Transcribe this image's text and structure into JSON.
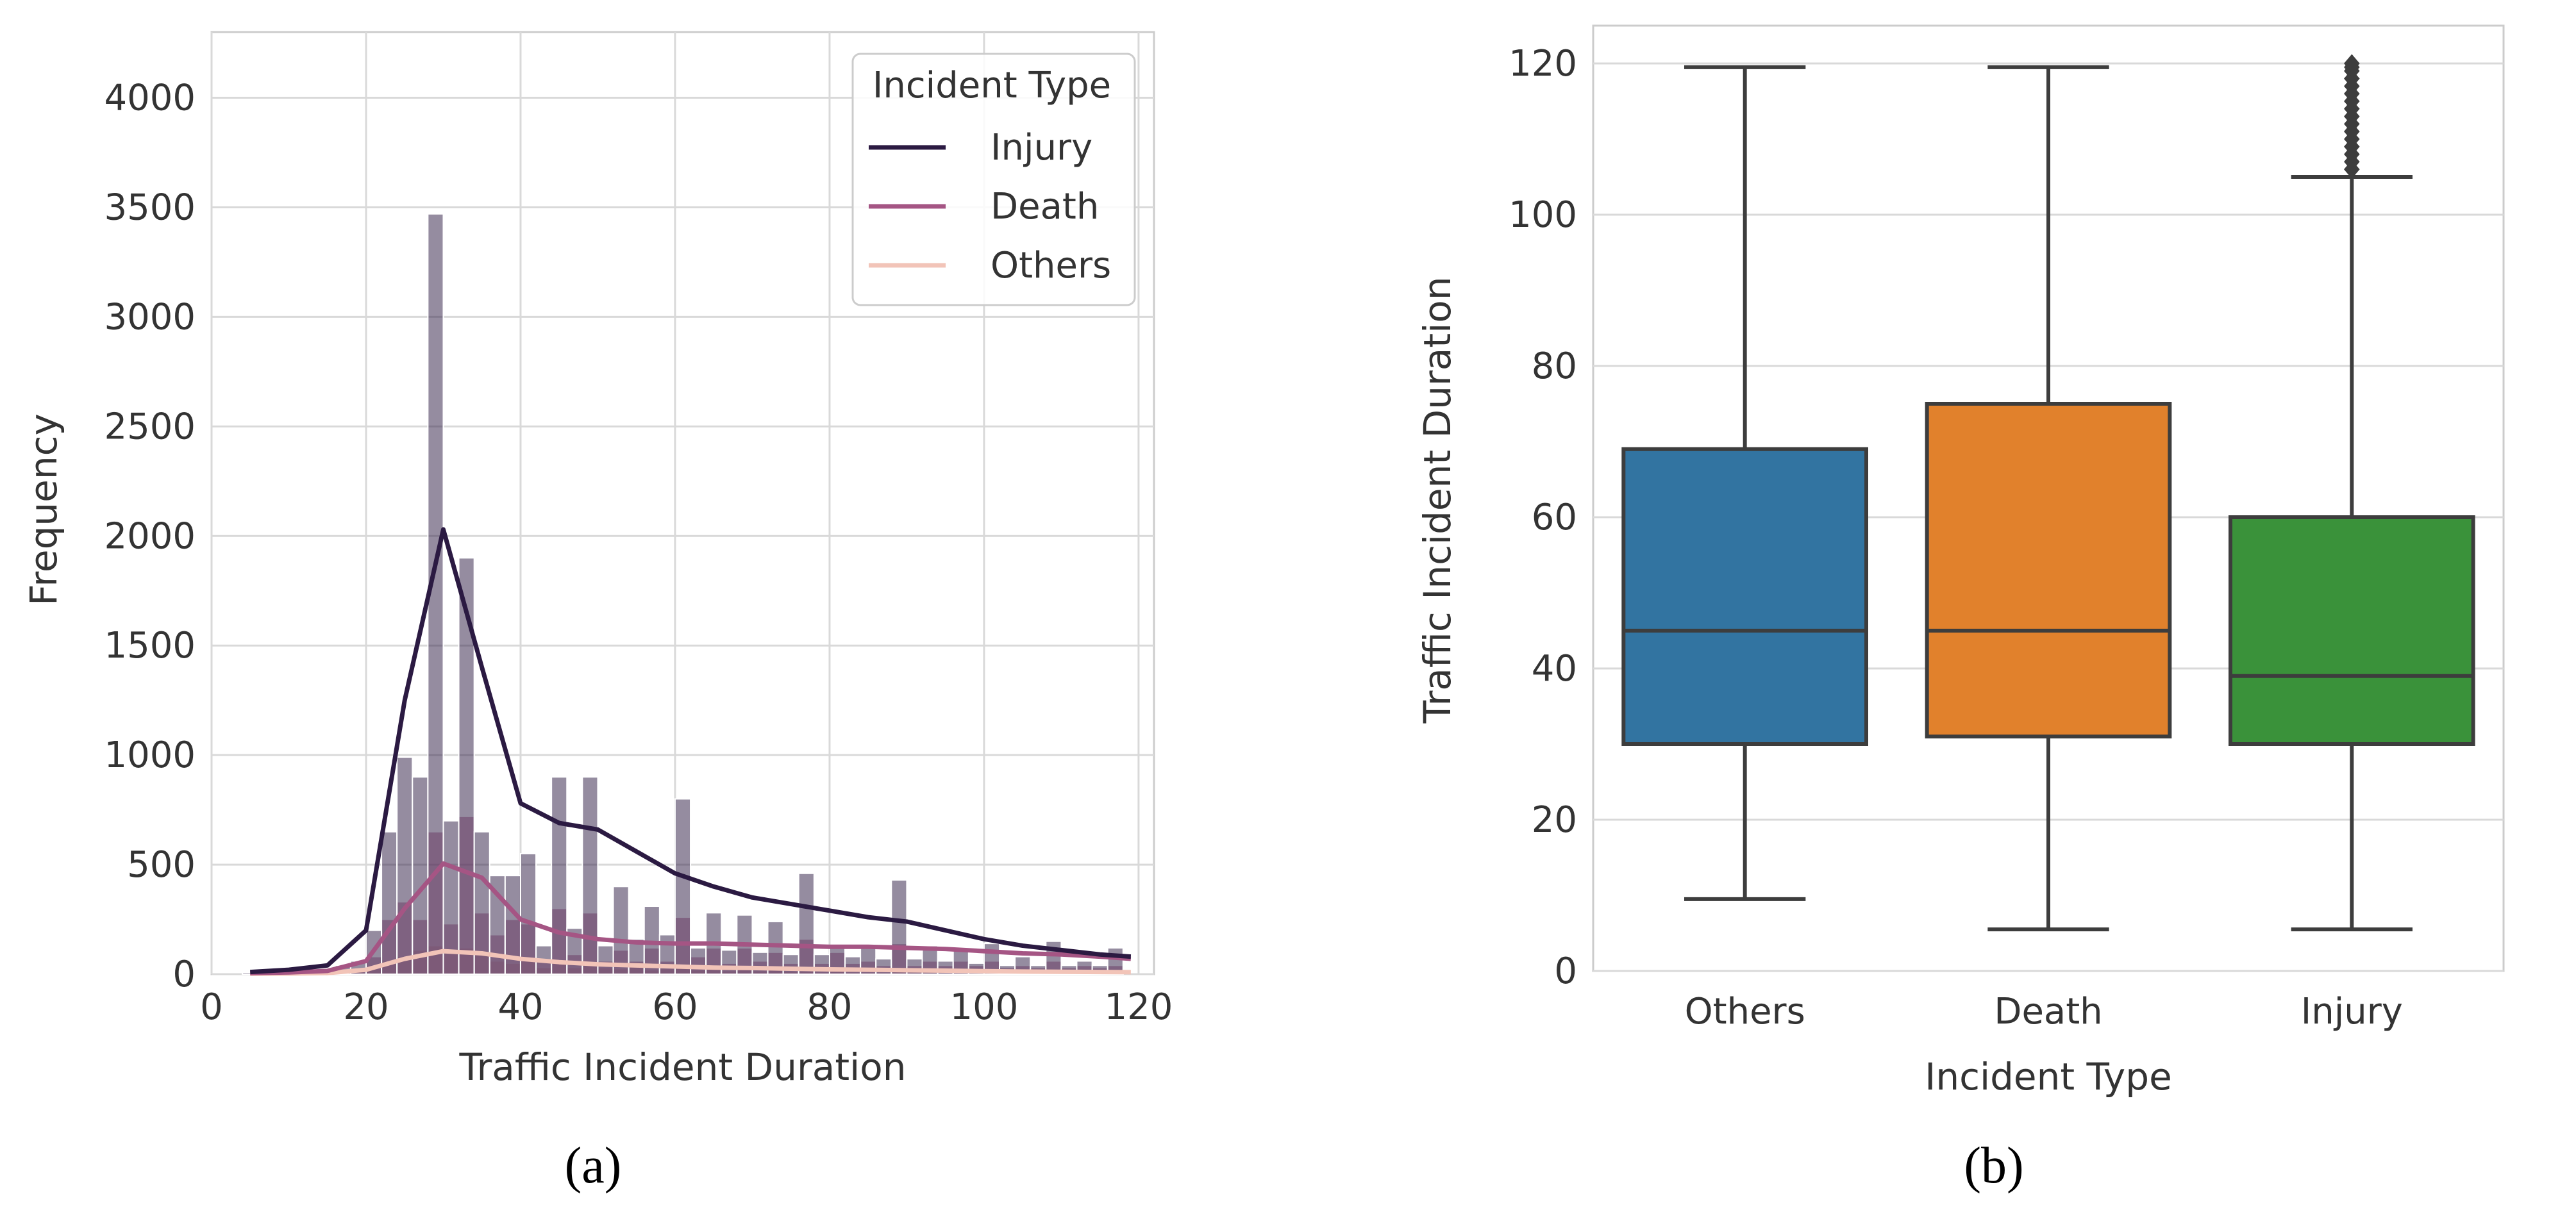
{
  "chart_data": [
    {
      "type": "histogram",
      "panel_label": "(a)",
      "xlabel": "Traffic Incident Duration",
      "ylabel": "Frequency",
      "xlim": [
        0,
        122
      ],
      "ylim": [
        0,
        4300
      ],
      "x_ticks": [
        "0",
        "20",
        "40",
        "60",
        "80",
        "100",
        "120"
      ],
      "y_ticks": [
        "0",
        "500",
        "1000",
        "1500",
        "2000",
        "2500",
        "3000",
        "3500",
        "4000"
      ],
      "grid": true,
      "legend": {
        "title": "Incident Type",
        "position": "top-right",
        "entries": [
          {
            "label": "Injury",
            "color": "#2b1a42"
          },
          {
            "label": "Death",
            "color": "#a55584"
          },
          {
            "label": "Others",
            "color": "#f2c4b8"
          }
        ]
      },
      "bin_width": 2,
      "bins_x": [
        5,
        7,
        9,
        11,
        13,
        15,
        17,
        19,
        21,
        23,
        25,
        27,
        29,
        31,
        33,
        35,
        37,
        39,
        41,
        43,
        45,
        47,
        49,
        51,
        53,
        55,
        57,
        59,
        61,
        63,
        65,
        67,
        69,
        71,
        73,
        75,
        77,
        79,
        81,
        83,
        85,
        87,
        89,
        91,
        93,
        95,
        97,
        99,
        101,
        103,
        105,
        107,
        109,
        111,
        113,
        115,
        117
      ],
      "series": [
        {
          "name": "Others",
          "color": "#f2c4b8",
          "hist": [
            3,
            2,
            2,
            3,
            4,
            5,
            6,
            10,
            25,
            60,
            80,
            110,
            130,
            95,
            120,
            100,
            60,
            50,
            70,
            30,
            55,
            30,
            45,
            30,
            25,
            35,
            20,
            25,
            40,
            20,
            30,
            15,
            25,
            15,
            20,
            12,
            15,
            10,
            20,
            10,
            10,
            8,
            15,
            8,
            8,
            6,
            8,
            6,
            6,
            5,
            5,
            4,
            6,
            4,
            4,
            4,
            4
          ],
          "kde": [
            [
              5,
              2
            ],
            [
              10,
              3
            ],
            [
              15,
              5
            ],
            [
              20,
              20
            ],
            [
              25,
              70
            ],
            [
              30,
              105
            ],
            [
              35,
              95
            ],
            [
              40,
              70
            ],
            [
              45,
              55
            ],
            [
              50,
              45
            ],
            [
              55,
              40
            ],
            [
              60,
              35
            ],
            [
              65,
              30
            ],
            [
              70,
              28
            ],
            [
              75,
              25
            ],
            [
              80,
              22
            ],
            [
              85,
              20
            ],
            [
              90,
              18
            ],
            [
              95,
              16
            ],
            [
              100,
              14
            ],
            [
              105,
              12
            ],
            [
              110,
              11
            ],
            [
              115,
              10
            ],
            [
              119,
              9
            ]
          ]
        },
        {
          "name": "Death",
          "color": "#a55584",
          "hist": [
            5,
            3,
            3,
            4,
            6,
            8,
            12,
            20,
            80,
            250,
            330,
            250,
            650,
            230,
            720,
            280,
            180,
            250,
            230,
            60,
            300,
            90,
            280,
            60,
            110,
            60,
            120,
            60,
            260,
            80,
            120,
            50,
            120,
            60,
            100,
            50,
            160,
            50,
            100,
            50,
            60,
            40,
            140,
            40,
            60,
            40,
            60,
            40,
            60,
            30,
            40,
            30,
            60,
            30,
            40,
            30,
            40
          ],
          "kde": [
            [
              5,
              5
            ],
            [
              10,
              8
            ],
            [
              15,
              15
            ],
            [
              20,
              60
            ],
            [
              25,
              300
            ],
            [
              30,
              505
            ],
            [
              35,
              440
            ],
            [
              40,
              250
            ],
            [
              45,
              190
            ],
            [
              50,
              160
            ],
            [
              55,
              145
            ],
            [
              60,
              140
            ],
            [
              65,
              140
            ],
            [
              70,
              135
            ],
            [
              75,
              130
            ],
            [
              80,
              125
            ],
            [
              85,
              125
            ],
            [
              90,
              120
            ],
            [
              95,
              115
            ],
            [
              100,
              105
            ],
            [
              105,
              95
            ],
            [
              110,
              90
            ],
            [
              115,
              80
            ],
            [
              119,
              70
            ]
          ]
        },
        {
          "name": "Injury",
          "color": "#2b1a42",
          "hist": [
            8,
            5,
            5,
            8,
            12,
            20,
            40,
            60,
            200,
            650,
            990,
            900,
            3470,
            700,
            1900,
            650,
            450,
            450,
            550,
            130,
            900,
            210,
            900,
            130,
            400,
            160,
            310,
            180,
            800,
            120,
            280,
            110,
            270,
            100,
            240,
            90,
            460,
            90,
            130,
            80,
            130,
            70,
            430,
            70,
            130,
            60,
            120,
            50,
            140,
            40,
            80,
            40,
            150,
            40,
            60,
            40,
            120
          ],
          "kde": [
            [
              5,
              10
            ],
            [
              10,
              20
            ],
            [
              15,
              40
            ],
            [
              20,
              200
            ],
            [
              25,
              1250
            ],
            [
              30,
              2030
            ],
            [
              35,
              1400
            ],
            [
              40,
              780
            ],
            [
              45,
              690
            ],
            [
              50,
              660
            ],
            [
              55,
              560
            ],
            [
              60,
              460
            ],
            [
              65,
              400
            ],
            [
              70,
              350
            ],
            [
              75,
              320
            ],
            [
              80,
              290
            ],
            [
              85,
              260
            ],
            [
              90,
              240
            ],
            [
              95,
              200
            ],
            [
              100,
              160
            ],
            [
              105,
              130
            ],
            [
              110,
              110
            ],
            [
              115,
              90
            ],
            [
              119,
              80
            ]
          ]
        }
      ]
    },
    {
      "type": "box",
      "panel_label": "(b)",
      "xlabel": "Incident Type",
      "ylabel": "Traffic Incident Duration",
      "ylim": [
        0,
        125
      ],
      "y_ticks": [
        "0",
        "20",
        "40",
        "60",
        "80",
        "100",
        "120"
      ],
      "grid": true,
      "categories": [
        "Others",
        "Death",
        "Injury"
      ],
      "boxes": [
        {
          "category": "Others",
          "color": "#3274a1",
          "whisker_low": 9.5,
          "q1": 30,
          "median": 45,
          "q3": 69,
          "whisker_high": 119.5,
          "outliers": []
        },
        {
          "category": "Death",
          "color": "#e1812c",
          "whisker_low": 5.5,
          "q1": 31,
          "median": 45,
          "q3": 75,
          "whisker_high": 119.5,
          "outliers": []
        },
        {
          "category": "Injury",
          "color": "#3a923a",
          "whisker_low": 5.5,
          "q1": 30,
          "median": 39,
          "q3": 60,
          "whisker_high": 105,
          "outliers": [
            106,
            107,
            108,
            109,
            110,
            111,
            112,
            113,
            114,
            115,
            116,
            117,
            118,
            119,
            119.5,
            120
          ]
        }
      ]
    }
  ]
}
